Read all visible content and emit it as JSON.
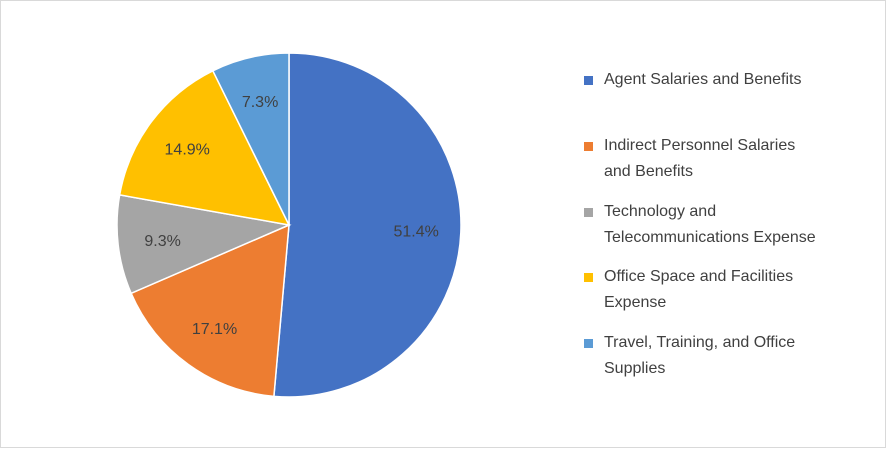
{
  "chart_data": {
    "type": "pie",
    "title": "",
    "slices": [
      {
        "label": "Agent Salaries and Benefits",
        "value": 51.4,
        "display": "51.4%",
        "color": "#4472C4"
      },
      {
        "label": "Indirect Personnel Salaries and Benefits",
        "value": 17.1,
        "display": "17.1%",
        "color": "#ED7D31"
      },
      {
        "label": "Technology and Telecommunications Expense",
        "value": 9.3,
        "display": "9.3%",
        "color": "#A5A5A5"
      },
      {
        "label": "Office Space and Facilities Expense",
        "value": 14.9,
        "display": "14.9%",
        "color": "#FFC000"
      },
      {
        "label": "Travel, Training, and Office Supplies",
        "value": 7.3,
        "display": "7.3%",
        "color": "#5B9BD5"
      }
    ],
    "legend_position": "right",
    "legend": [
      {
        "line1": "Agent Salaries and Benefits",
        "line2": ""
      },
      {
        "line1": "Indirect Personnel Salaries",
        "line2": "and Benefits"
      },
      {
        "line1": "Technology and",
        "line2": "Telecommunications Expense"
      },
      {
        "line1": "Office Space and Facilities",
        "line2": "Expense"
      },
      {
        "line1": "Travel, Training, and Office",
        "line2": "Supplies"
      }
    ]
  }
}
